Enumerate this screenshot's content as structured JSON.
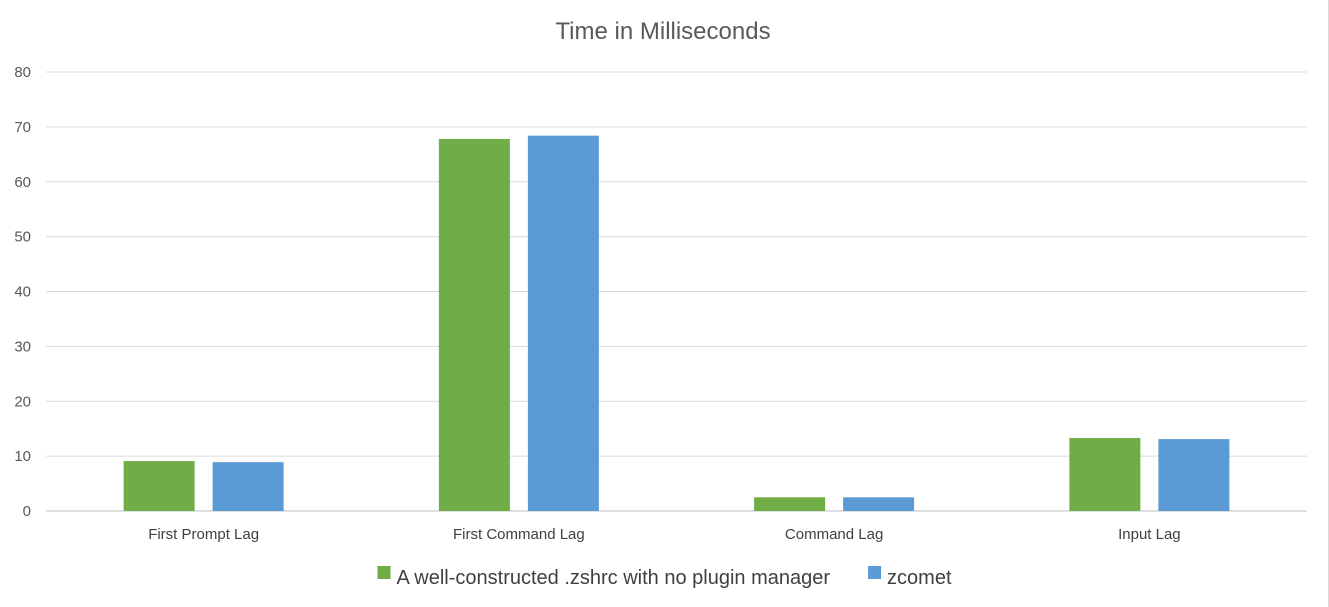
{
  "chart_data": {
    "type": "bar",
    "title": "Time in Milliseconds",
    "xlabel": "",
    "ylabel": "",
    "categories": [
      "First Prompt Lag",
      "First Command Lag",
      "Command Lag",
      "Input Lag"
    ],
    "series": [
      {
        "name": "A well-constructed .zshrc with no plugin manager",
        "color": "#70ad47",
        "values": [
          9.1,
          67.8,
          2.5,
          13.3
        ]
      },
      {
        "name": "zcomet",
        "color": "#5b9bd5",
        "values": [
          8.9,
          68.4,
          2.5,
          13.1
        ]
      }
    ],
    "ylim": [
      0,
      80
    ],
    "yticks": [
      0,
      10,
      20,
      30,
      40,
      50,
      60,
      70,
      80
    ],
    "grid": true,
    "legend_position": "bottom"
  }
}
